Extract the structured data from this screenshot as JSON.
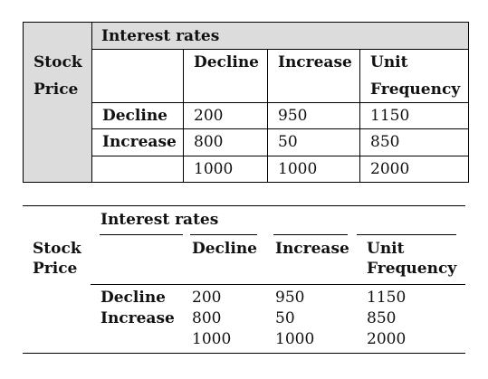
{
  "table1": {
    "stub_label": [
      "Stock",
      "Price"
    ],
    "group_header": "Interest rates",
    "columns": [
      "Decline",
      "Increase",
      "Unit",
      "Frequency"
    ],
    "rows": [
      {
        "label": "Decline",
        "values": [
          "200",
          "950",
          "1150"
        ]
      },
      {
        "label": "Increase",
        "values": [
          "800",
          "50",
          "850"
        ]
      },
      {
        "label": "",
        "values": [
          "1000",
          "1000",
          "2000"
        ]
      }
    ]
  },
  "table2": {
    "stub_label": [
      "Stock",
      "Price"
    ],
    "group_header": "Interest rates",
    "columns": [
      "Decline",
      "Increase",
      "Unit",
      "Frequency"
    ],
    "rows": [
      {
        "label": "Decline",
        "values": [
          "200",
          "950",
          "1150"
        ]
      },
      {
        "label": "Increase",
        "values": [
          "800",
          "50",
          "850"
        ]
      },
      {
        "label": "",
        "values": [
          "1000",
          "1000",
          "2000"
        ]
      }
    ]
  }
}
